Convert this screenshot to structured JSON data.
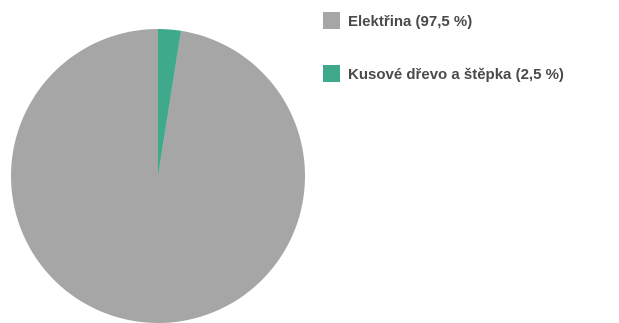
{
  "chart_data": {
    "type": "pie",
    "title": "",
    "slices": [
      {
        "label": "Elektřina (97,5 %)",
        "value": 97.5,
        "color": "#a6a6a6"
      },
      {
        "label": "Kusové dřevo a štěpka (2,5 %)",
        "value": 2.5,
        "color": "#3fa98c"
      }
    ],
    "start_angle_deg": 0,
    "direction": "counterclockwise",
    "legend_position": "right"
  }
}
